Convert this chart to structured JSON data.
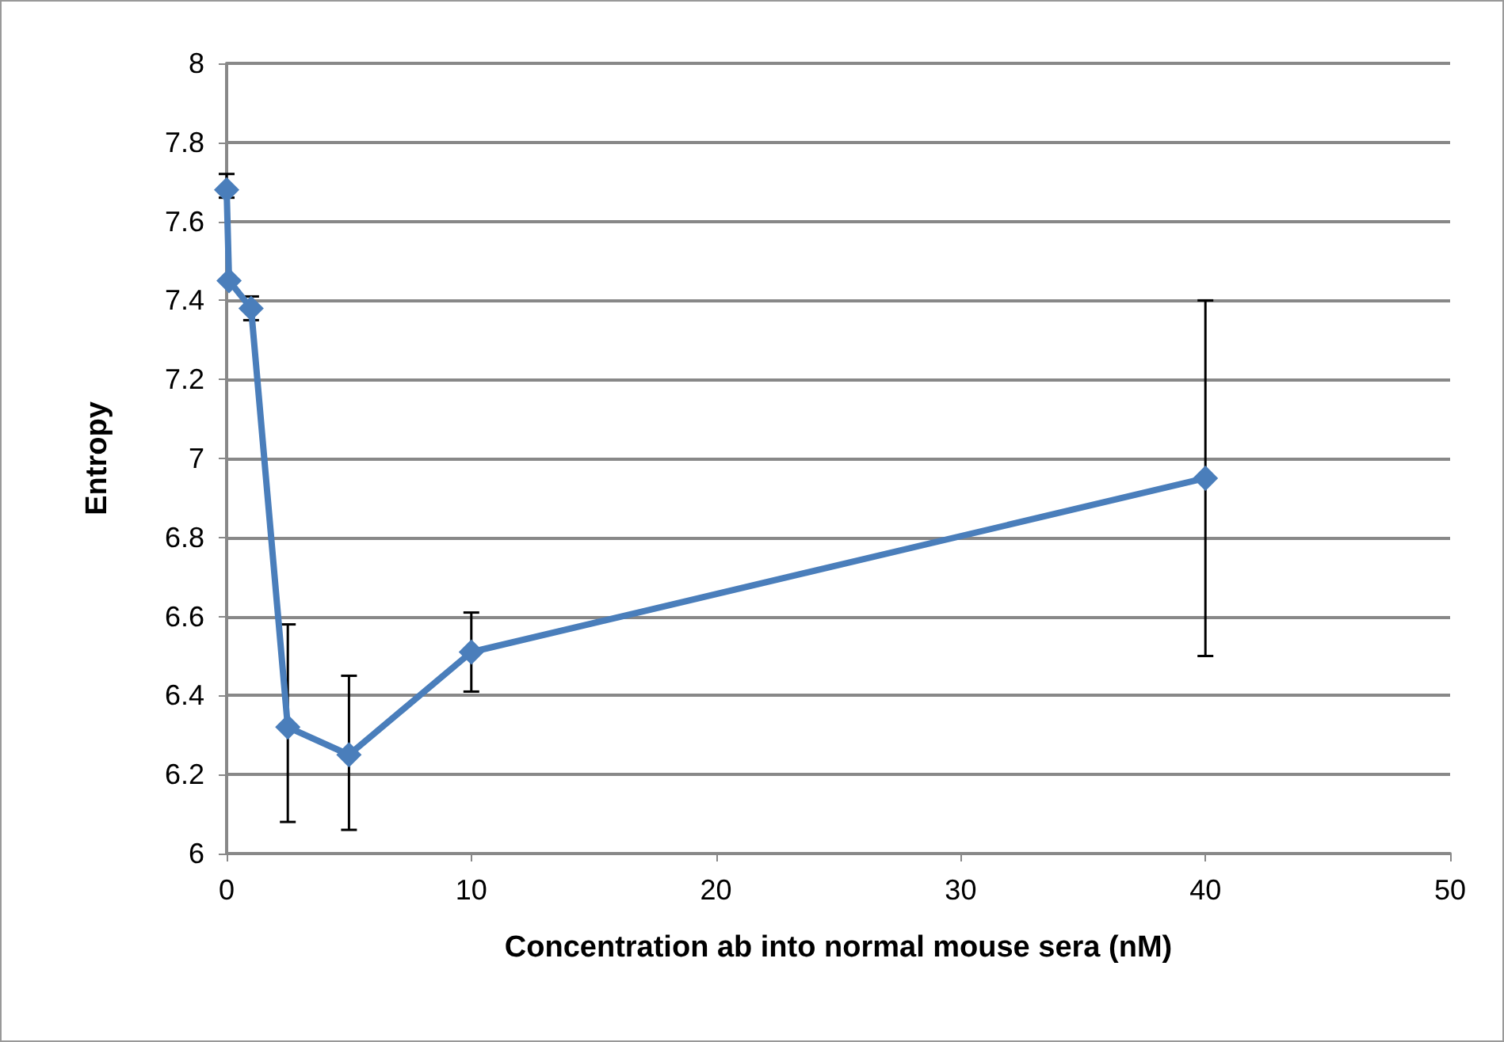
{
  "chart_data": {
    "type": "line",
    "xlabel": "Concentration ab into normal mouse sera (nM)",
    "ylabel": "Entropy",
    "x": [
      0,
      0.1,
      1,
      2.5,
      5,
      10,
      40
    ],
    "series": [
      {
        "color": "#4a7ebb",
        "values": [
          7.68,
          7.45,
          7.38,
          6.32,
          6.25,
          6.51,
          6.95
        ],
        "errors": [
          [
            7.66,
            7.72
          ],
          null,
          [
            7.35,
            7.41
          ],
          [
            6.08,
            6.58
          ],
          [
            6.06,
            6.45
          ],
          [
            6.41,
            6.61
          ],
          [
            6.5,
            7.4
          ]
        ]
      }
    ],
    "xlim": [
      0,
      50
    ],
    "xticks": [
      0,
      10,
      20,
      30,
      40,
      50
    ],
    "ylim": [
      6,
      8
    ],
    "yticks": [
      6,
      6.2,
      6.4,
      6.6,
      6.8,
      7,
      7.2,
      7.4,
      7.6,
      7.8,
      8
    ],
    "grid": "y",
    "marker": "diamond",
    "line_style": "solid"
  }
}
